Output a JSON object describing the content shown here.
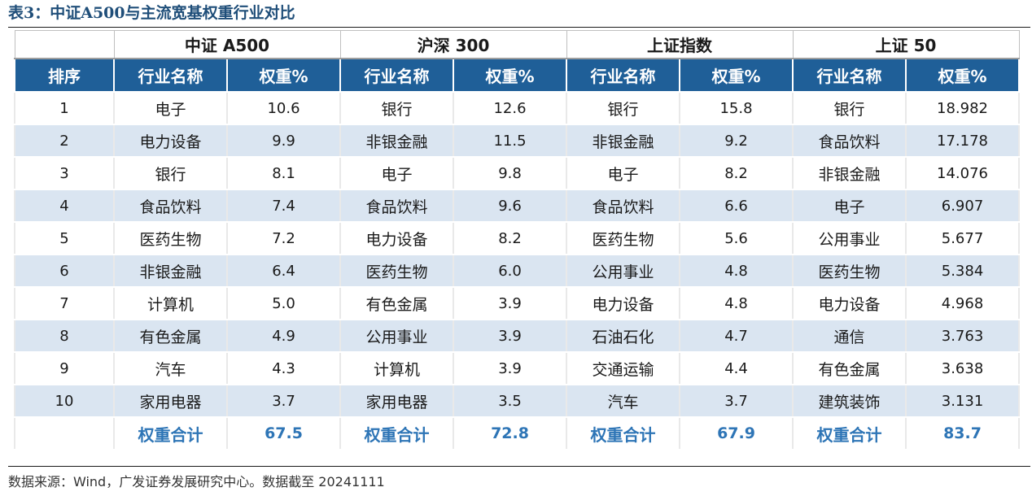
{
  "title": "表3：中证A500与主流宽基权重行业对比",
  "source": "数据来源：Wind，广发证券发展研究中心。数据截至 20241111",
  "table": {
    "group_headers": [
      "中证 A500",
      "沪深 300",
      "上证指数",
      "上证 50"
    ],
    "column_headers": {
      "rank": "排序",
      "industry": "行业名称",
      "weight": "权重%"
    },
    "rows": [
      {
        "rank": "1",
        "cols": [
          {
            "name": "电子",
            "weight": "10.6"
          },
          {
            "name": "银行",
            "weight": "12.6"
          },
          {
            "name": "银行",
            "weight": "15.8"
          },
          {
            "name": "银行",
            "weight": "18.982"
          }
        ]
      },
      {
        "rank": "2",
        "cols": [
          {
            "name": "电力设备",
            "weight": "9.9"
          },
          {
            "name": "非银金融",
            "weight": "11.5"
          },
          {
            "name": "非银金融",
            "weight": "9.2"
          },
          {
            "name": "食品饮料",
            "weight": "17.178"
          }
        ]
      },
      {
        "rank": "3",
        "cols": [
          {
            "name": "银行",
            "weight": "8.1"
          },
          {
            "name": "电子",
            "weight": "9.8"
          },
          {
            "name": "电子",
            "weight": "8.2"
          },
          {
            "name": "非银金融",
            "weight": "14.076"
          }
        ]
      },
      {
        "rank": "4",
        "cols": [
          {
            "name": "食品饮料",
            "weight": "7.4"
          },
          {
            "name": "食品饮料",
            "weight": "9.6"
          },
          {
            "name": "食品饮料",
            "weight": "6.6"
          },
          {
            "name": "电子",
            "weight": "6.907"
          }
        ]
      },
      {
        "rank": "5",
        "cols": [
          {
            "name": "医药生物",
            "weight": "7.2"
          },
          {
            "name": "电力设备",
            "weight": "8.2"
          },
          {
            "name": "医药生物",
            "weight": "5.6"
          },
          {
            "name": "公用事业",
            "weight": "5.677"
          }
        ]
      },
      {
        "rank": "6",
        "cols": [
          {
            "name": "非银金融",
            "weight": "6.4"
          },
          {
            "name": "医药生物",
            "weight": "6.0"
          },
          {
            "name": "公用事业",
            "weight": "4.8"
          },
          {
            "name": "医药生物",
            "weight": "5.384"
          }
        ]
      },
      {
        "rank": "7",
        "cols": [
          {
            "name": "计算机",
            "weight": "5.0"
          },
          {
            "name": "有色金属",
            "weight": "3.9"
          },
          {
            "name": "电力设备",
            "weight": "4.8"
          },
          {
            "name": "电力设备",
            "weight": "4.968"
          }
        ]
      },
      {
        "rank": "8",
        "cols": [
          {
            "name": "有色金属",
            "weight": "4.9"
          },
          {
            "name": "公用事业",
            "weight": "3.9"
          },
          {
            "name": "石油石化",
            "weight": "4.7"
          },
          {
            "name": "通信",
            "weight": "3.763"
          }
        ]
      },
      {
        "rank": "9",
        "cols": [
          {
            "name": "汽车",
            "weight": "4.3"
          },
          {
            "name": "计算机",
            "weight": "3.9"
          },
          {
            "name": "交通运输",
            "weight": "4.4"
          },
          {
            "name": "有色金属",
            "weight": "3.638"
          }
        ]
      },
      {
        "rank": "10",
        "cols": [
          {
            "name": "家用电器",
            "weight": "3.7"
          },
          {
            "name": "家用电器",
            "weight": "3.5"
          },
          {
            "name": "汽车",
            "weight": "3.7"
          },
          {
            "name": "建筑装饰",
            "weight": "3.131"
          }
        ]
      }
    ],
    "total": {
      "label": "权重合计",
      "values": [
        "67.5",
        "72.8",
        "67.9",
        "83.7"
      ]
    }
  },
  "colors": {
    "header_bg": "#1f5f98",
    "stripe_bg": "#dae5f1",
    "total_text": "#2e75b6",
    "title_text": "#1f4e79"
  }
}
